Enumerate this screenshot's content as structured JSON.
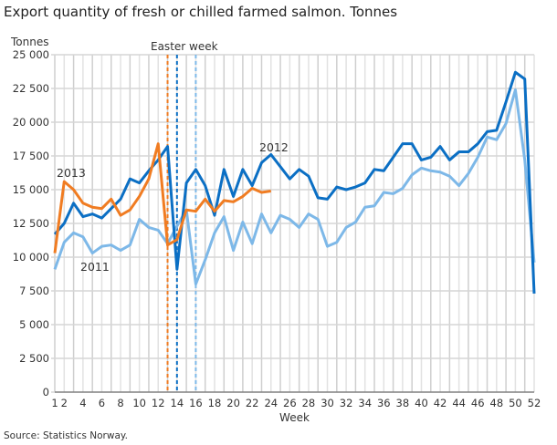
{
  "title": "Export quantity of fresh or chilled farmed salmon. Tonnes",
  "source": "Source: Statistics Norway.",
  "chart_data": {
    "type": "line",
    "ylabel": "Tonnes",
    "xlabel": "Week",
    "ylim": [
      0,
      25000
    ],
    "xlim": [
      1,
      52
    ],
    "yticks": [
      "0",
      "2 500",
      "5 000",
      "7 500",
      "10 000",
      "12 500",
      "15 000",
      "17 500",
      "20 000",
      "22 500",
      "25 000"
    ],
    "ytick_values": [
      0,
      2500,
      5000,
      7500,
      10000,
      12500,
      15000,
      17500,
      20000,
      22500,
      25000
    ],
    "xticks": [
      1,
      2,
      4,
      6,
      8,
      10,
      12,
      14,
      16,
      18,
      20,
      22,
      24,
      26,
      28,
      30,
      32,
      34,
      36,
      38,
      40,
      42,
      44,
      46,
      48,
      50,
      52
    ],
    "grid": true,
    "annotation": "Easter week",
    "easter_weeks": [
      {
        "series": "2013",
        "week": 13,
        "color": "#f07c22"
      },
      {
        "series": "2012",
        "week": 14,
        "color": "#0b6fc4"
      },
      {
        "series": "2011",
        "week": 16,
        "color": "#7db8e8"
      }
    ],
    "series": [
      {
        "name": "2011",
        "color": "#7db8e8",
        "label_week": 4,
        "values": [
          9100,
          11100,
          11800,
          11500,
          10300,
          10800,
          10900,
          10500,
          10900,
          12800,
          12200,
          12000,
          11000,
          12300,
          13500,
          8000,
          9800,
          11800,
          13000,
          10500,
          12600,
          11000,
          13200,
          11800,
          13100,
          12800,
          12200,
          13200,
          12800,
          10800,
          11100,
          12200,
          12600,
          13700,
          13800,
          14800,
          14700,
          15100,
          16100,
          16600,
          16400,
          16300,
          16000,
          15300,
          16200,
          17400,
          18900,
          18700,
          19900,
          22400,
          17200,
          9600
        ]
      },
      {
        "name": "2012",
        "color": "#0b6fc4",
        "label_week": 24,
        "values": [
          11700,
          12500,
          14000,
          13000,
          13200,
          12900,
          13600,
          14300,
          15800,
          15500,
          16400,
          17200,
          18200,
          9100,
          15500,
          16500,
          15300,
          13100,
          16500,
          14500,
          16500,
          15300,
          17000,
          17600,
          16700,
          15800,
          16500,
          16000,
          14400,
          14300,
          15200,
          15000,
          15200,
          15500,
          16500,
          16400,
          17400,
          18400,
          18400,
          17200,
          17400,
          18200,
          17200,
          17800,
          17800,
          18400,
          19300,
          19400,
          21500,
          23700,
          23200,
          7300
        ]
      },
      {
        "name": "2013",
        "color": "#f07c22",
        "label_week": 2,
        "values": [
          10300,
          15600,
          15000,
          14000,
          13700,
          13600,
          14300,
          13100,
          13500,
          14500,
          15800,
          18400,
          10900,
          11300,
          13500,
          13400,
          14300,
          13400,
          14200,
          14100,
          14500,
          15100,
          14800,
          14900
        ]
      }
    ]
  }
}
